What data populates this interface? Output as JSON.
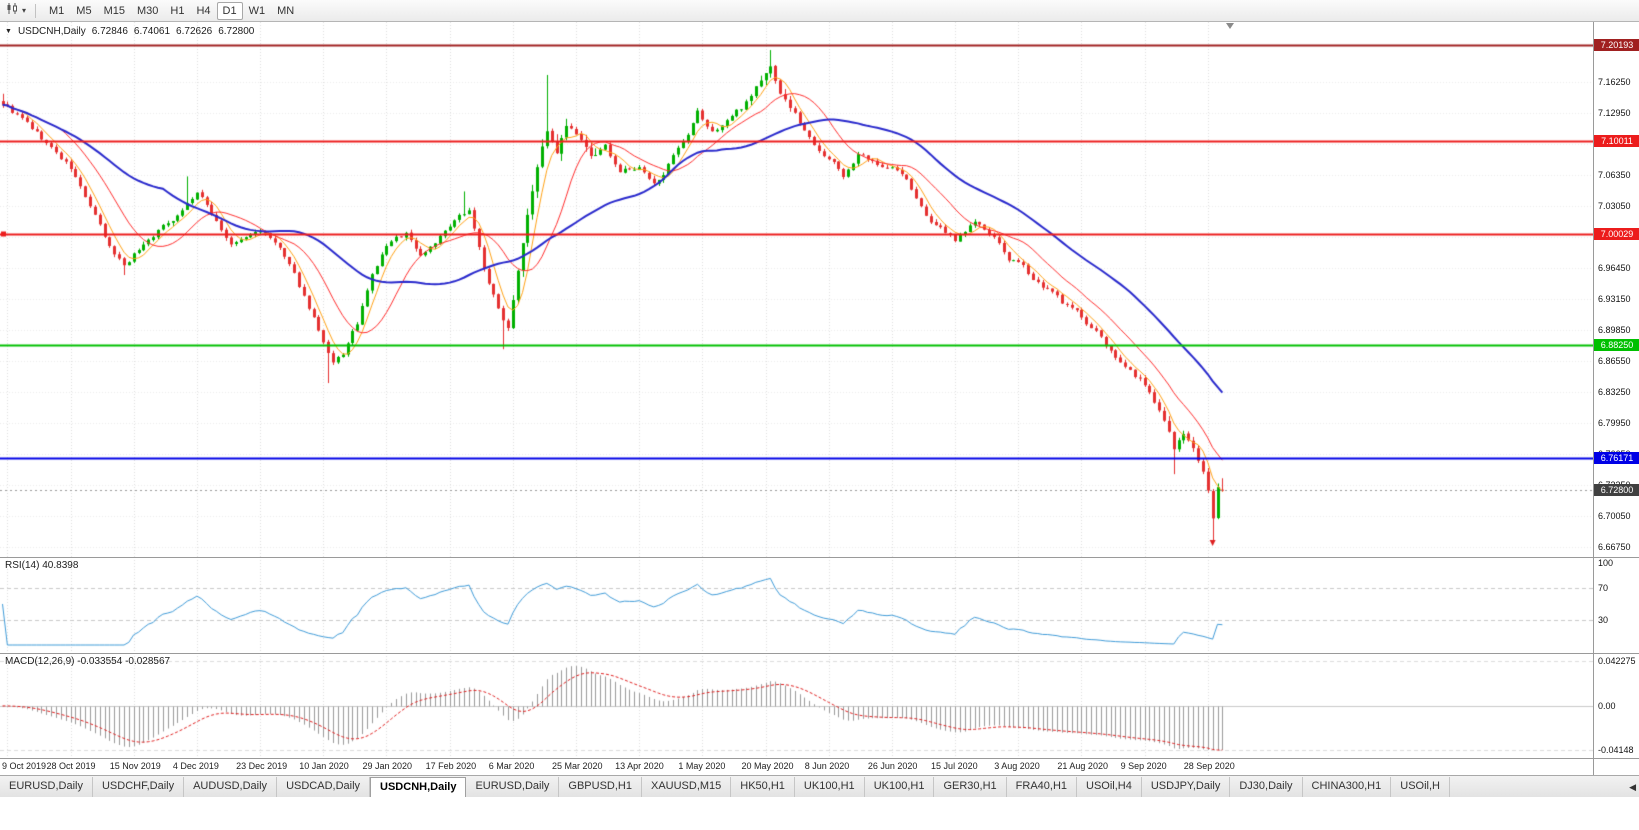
{
  "toolbar": {
    "chart_type_icon": "candlestick-chart-icon",
    "dropdown_icon": "▾",
    "timeframes": [
      "M1",
      "M5",
      "M15",
      "M30",
      "H1",
      "H4",
      "D1",
      "W1",
      "MN"
    ],
    "active_timeframe": "D1"
  },
  "chart": {
    "title": {
      "collapse_icon": "▼",
      "symbol": "USDCNH,Daily",
      "open": "6.72846",
      "high": "6.74061",
      "low": "6.72626",
      "close": "6.72800"
    },
    "price_ticks": [
      "7.16250",
      "7.12950",
      "7.09650",
      "7.06350",
      "7.03050",
      "6.99750",
      "6.96450",
      "6.93150",
      "6.89850",
      "6.86550",
      "6.83250",
      "6.79950",
      "6.76650",
      "6.73350",
      "6.70050",
      "6.66750"
    ],
    "levels": [
      {
        "label": "7.20193",
        "price": 7.20193,
        "color": "#a02020",
        "width": 2,
        "handle": false
      },
      {
        "label": "7.10011",
        "price": 7.10011,
        "color": "#ec1c1c",
        "width": 2,
        "handle": false
      },
      {
        "label": "7.00029",
        "price": 7.00029,
        "color": "#ec1c1c",
        "width": 2,
        "handle": true
      },
      {
        "label": "6.88250",
        "price": 6.8825,
        "color": "#00c000",
        "width": 2,
        "handle": false
      },
      {
        "label": "6.76171",
        "price": 6.76171,
        "color": "#0000e6",
        "width": 2,
        "handle": false
      }
    ],
    "current_price": {
      "label": "6.72800",
      "price": 6.728,
      "color": "#404040"
    }
  },
  "rsi": {
    "label": "RSI(14) 40.8398",
    "ticks": [
      "100",
      "70",
      "30"
    ],
    "tick_values": [
      100,
      70,
      30
    ],
    "levels": [
      70,
      30
    ],
    "range": [
      0,
      100
    ],
    "color": "#3f9bd8"
  },
  "macd": {
    "label": "MACD(12,26,9) -0.033554 -0.028567",
    "ticks": [
      "0.042275",
      "0.00",
      "-0.04148"
    ],
    "tick_values": [
      0.042275,
      0,
      -0.04148
    ],
    "max": 0.042275,
    "min": -0.04148,
    "histogram_color": "#9a9a9a",
    "signal_color": "#e02020"
  },
  "dates": [
    "9 Oct 2019",
    "28 Oct 2019",
    "15 Nov 2019",
    "4 Dec 2019",
    "23 Dec 2019",
    "10 Jan 2020",
    "29 Jan 2020",
    "17 Feb 2020",
    "6 Mar 2020",
    "25 Mar 2020",
    "13 Apr 2020",
    "1 May 2020",
    "20 May 2020",
    "8 Jun 2020",
    "26 Jun 2020",
    "15 Jul 2020",
    "3 Aug 2020",
    "21 Aug 2020",
    "9 Sep 2020",
    "28 Sep 2020"
  ],
  "tabs": {
    "scroll_icon": "◀",
    "items": [
      {
        "label": "EURUSD,Daily"
      },
      {
        "label": "USDCHF,Daily"
      },
      {
        "label": "AUDUSD,Daily"
      },
      {
        "label": "USDCAD,Daily"
      },
      {
        "label": "USDCNH,Daily",
        "active": true
      },
      {
        "label": "EURUSD,Daily"
      },
      {
        "label": "GBPUSD,H1"
      },
      {
        "label": "XAUUSD,M15"
      },
      {
        "label": "HK50,H1"
      },
      {
        "label": "UK100,H1"
      },
      {
        "label": "UK100,H1"
      },
      {
        "label": "GER30,H1"
      },
      {
        "label": "FRA40,H1"
      },
      {
        "label": "USOil,H4"
      },
      {
        "label": "USDJPY,Daily"
      },
      {
        "label": "DJ30,Daily"
      },
      {
        "label": "CHINA300,H1"
      },
      {
        "label": "USOil,H"
      }
    ]
  },
  "chart_data": {
    "type": "candlestick",
    "symbol": "USDCNH",
    "timeframe": "Daily",
    "price_max": 7.2264,
    "price_min": 6.6568,
    "candle_count": 252,
    "label_start_index": 1,
    "label_step": 13,
    "seed": 9,
    "noise": 0.012,
    "wick": 0.0032,
    "colors": {
      "up": "#00b000",
      "down": "#e53030"
    },
    "ma": [
      {
        "period": 5,
        "color": "#ffa216",
        "width": 1
      },
      {
        "period": 13,
        "color": "#ff2d2d",
        "width": 1
      },
      {
        "period": 34,
        "color": "#2929cc",
        "width": 2
      }
    ],
    "close_anchors": [
      [
        0,
        7.14
      ],
      [
        5,
        7.118
      ],
      [
        10,
        7.092
      ],
      [
        14,
        7.07
      ],
      [
        18,
        7.03
      ],
      [
        22,
        6.985
      ],
      [
        25,
        6.968
      ],
      [
        28,
        6.985
      ],
      [
        31,
        7.0
      ],
      [
        36,
        7.022
      ],
      [
        40,
        7.045
      ],
      [
        44,
        7.015
      ],
      [
        47,
        6.988
      ],
      [
        53,
        7.005
      ],
      [
        57,
        6.985
      ],
      [
        61,
        6.945
      ],
      [
        64,
        6.912
      ],
      [
        66,
        6.882
      ],
      [
        68,
        6.86
      ],
      [
        70,
        6.872
      ],
      [
        73,
        6.905
      ],
      [
        76,
        6.955
      ],
      [
        79,
        6.988
      ],
      [
        83,
        7.002
      ],
      [
        86,
        6.978
      ],
      [
        90,
        6.998
      ],
      [
        93,
        7.012
      ],
      [
        96,
        7.028
      ],
      [
        99,
        6.965
      ],
      [
        102,
        6.92
      ],
      [
        104,
        6.902
      ],
      [
        106,
        6.965
      ],
      [
        108,
        7.025
      ],
      [
        110,
        7.075
      ],
      [
        112,
        7.112
      ],
      [
        114,
        7.085
      ],
      [
        116,
        7.115
      ],
      [
        118,
        7.105
      ],
      [
        121,
        7.082
      ],
      [
        124,
        7.092
      ],
      [
        127,
        7.068
      ],
      [
        131,
        7.07
      ],
      [
        134,
        7.052
      ],
      [
        138,
        7.082
      ],
      [
        141,
        7.102
      ],
      [
        143,
        7.128
      ],
      [
        146,
        7.108
      ],
      [
        149,
        7.122
      ],
      [
        152,
        7.135
      ],
      [
        155,
        7.158
      ],
      [
        158,
        7.178
      ],
      [
        160,
        7.152
      ],
      [
        163,
        7.128
      ],
      [
        166,
        7.103
      ],
      [
        170,
        7.082
      ],
      [
        173,
        7.063
      ],
      [
        176,
        7.085
      ],
      [
        180,
        7.072
      ],
      [
        183,
        7.075
      ],
      [
        186,
        7.058
      ],
      [
        189,
        7.028
      ],
      [
        192,
        7.008
      ],
      [
        196,
        6.995
      ],
      [
        200,
        7.015
      ],
      [
        204,
        6.995
      ],
      [
        207,
        6.974
      ],
      [
        209,
        6.968
      ],
      [
        212,
        6.954
      ],
      [
        215,
        6.942
      ],
      [
        218,
        6.928
      ],
      [
        222,
        6.912
      ],
      [
        225,
        6.898
      ],
      [
        228,
        6.874
      ],
      [
        231,
        6.858
      ],
      [
        234,
        6.846
      ],
      [
        236,
        6.832
      ],
      [
        238,
        6.812
      ],
      [
        240,
        6.788
      ],
      [
        241,
        6.768
      ],
      [
        243,
        6.788
      ],
      [
        245,
        6.776
      ],
      [
        247,
        6.748
      ],
      [
        248,
        6.726
      ],
      [
        249,
        6.7
      ],
      [
        250,
        6.731
      ],
      [
        251,
        6.728
      ]
    ],
    "vol_zones": [
      [
        104,
        122,
        2.4
      ],
      [
        154,
        162,
        1.7
      ],
      [
        236,
        251,
        1.6
      ]
    ],
    "pins": [
      {
        "i": 0,
        "h": 7.15
      },
      {
        "i": 25,
        "l": 6.957
      },
      {
        "i": 38,
        "h": 7.062
      },
      {
        "i": 67,
        "l": 6.842
      },
      {
        "i": 95,
        "h": 7.046
      },
      {
        "i": 103,
        "l": 6.878
      },
      {
        "i": 112,
        "h": 7.17
      },
      {
        "i": 158,
        "h": 7.1965
      },
      {
        "i": 241,
        "l": 6.745
      },
      {
        "i": 249,
        "l": 6.672
      }
    ],
    "last_candle": {
      "o": 6.72846,
      "h": 6.74061,
      "l": 6.72626,
      "c": 6.728
    },
    "marker": {
      "i": 249,
      "price": 6.675,
      "color": "#dd2020"
    }
  }
}
